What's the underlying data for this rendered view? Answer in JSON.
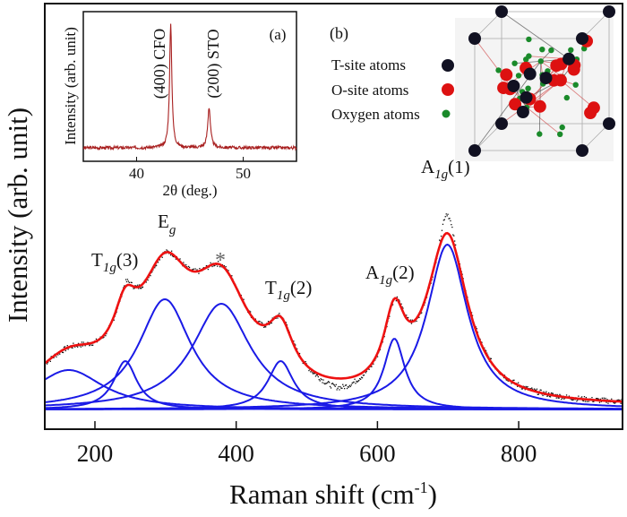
{
  "chart_data": {
    "type": "line",
    "title": "",
    "xlabel": "Raman shift (cm",
    "xlabel_sup": "-1",
    "xlabel_end": ")",
    "ylabel": "Intensity (arb. unit)",
    "xlim": [
      129,
      947
    ],
    "ylim": [
      -0.22,
      4.53
    ],
    "xticks": [
      200,
      400,
      600,
      800
    ],
    "xtick_labels": [
      "200",
      "400",
      "600",
      "800"
    ],
    "grid": false,
    "background": 0.03,
    "components": [
      {
        "center": 163,
        "height": 0.44,
        "hwhm": 60
      },
      {
        "center": 243,
        "height": 0.54,
        "hwhm": 20
      },
      {
        "center": 299,
        "height": 1.23,
        "hwhm": 45
      },
      {
        "center": 379,
        "height": 1.18,
        "hwhm": 50
      },
      {
        "center": 463,
        "height": 0.54,
        "hwhm": 22
      },
      {
        "center": 624,
        "height": 0.79,
        "hwhm": 18
      },
      {
        "center": 699,
        "height": 1.84,
        "hwhm": 35
      }
    ],
    "data_residuals": [
      {
        "center": 697,
        "amplitude": 0.22,
        "width": 9
      },
      {
        "center": 545,
        "amplitude": -0.1,
        "width": 30
      },
      {
        "center": 243,
        "amplitude": 0.05,
        "width": 6
      }
    ],
    "series": [
      {
        "name": "measured",
        "color": "#111111",
        "style": "dots"
      },
      {
        "name": "fit",
        "color": "#ee1111",
        "style": "line"
      },
      {
        "name": "components",
        "color": "#1a1ae6",
        "style": "line"
      }
    ],
    "annotations": [
      {
        "main": "T",
        "sub": "1g",
        "suffix": "(3)"
      },
      {
        "main": "E",
        "sub": "g",
        "suffix": ""
      },
      {
        "main": "*",
        "sub": "",
        "suffix": ""
      },
      {
        "main": "T",
        "sub": "1g",
        "suffix": "(2)"
      },
      {
        "main": "A",
        "sub": "1g",
        "suffix": "(2)"
      },
      {
        "main": "A",
        "sub": "1g",
        "suffix": "(1)"
      }
    ],
    "inset_a": {
      "type": "line",
      "panel_label": "(a)",
      "xlabel": "2θ (deg.)",
      "ylabel": "Intensity (arb. unit)",
      "xlim": [
        35,
        55
      ],
      "ylim": [
        -0.11,
        1.11
      ],
      "xticks": [
        40,
        50
      ],
      "xtick_labels": [
        "40",
        "50"
      ],
      "color": "#a82020",
      "peaks": [
        {
          "label": "(400) CFO",
          "center": 43.2,
          "height": 1.0,
          "hwhm": 0.13
        },
        {
          "label": "(200) STO",
          "center": 46.8,
          "height": 0.33,
          "hwhm": 0.15
        }
      ]
    }
  },
  "panel_b": {
    "panel_label": "(b)",
    "legend": [
      {
        "label": "T-site atoms",
        "color": "#111122"
      },
      {
        "label": "O-site atoms",
        "color": "#dd1111"
      },
      {
        "label": "Oxygen atoms",
        "color": "#1a8a2a"
      }
    ]
  }
}
